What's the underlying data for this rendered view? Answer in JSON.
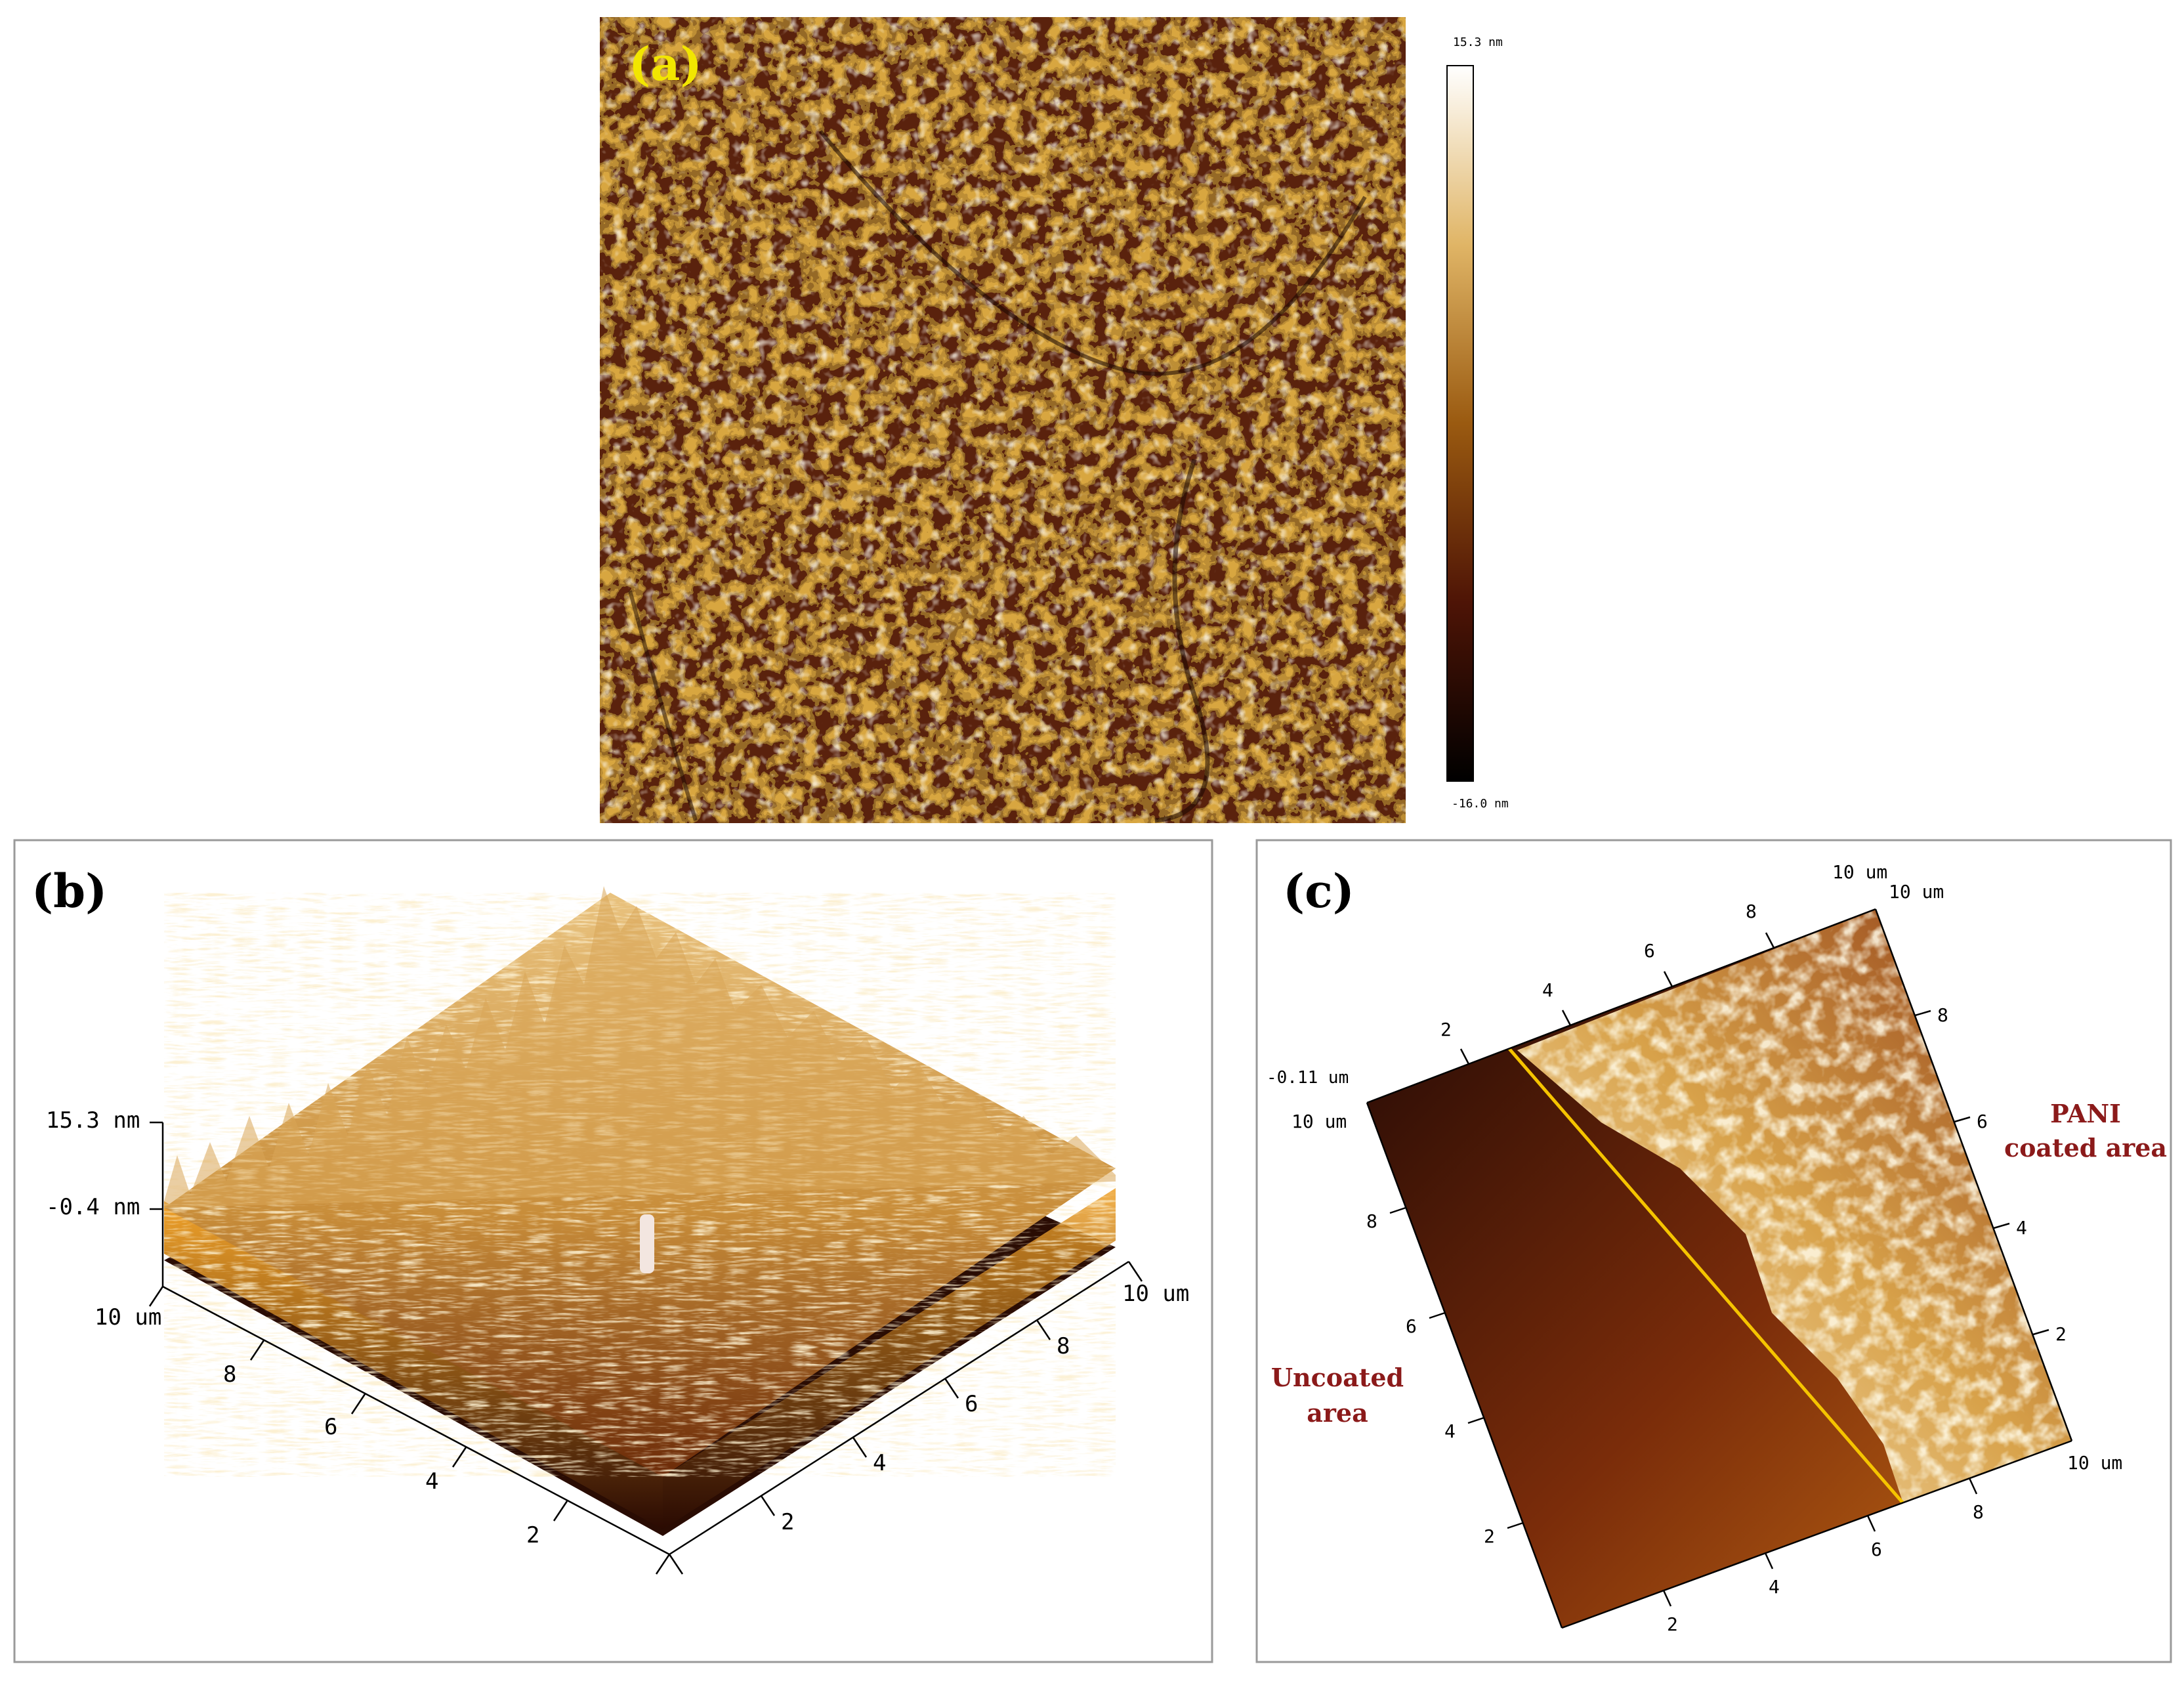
{
  "figure": {
    "panel_a": {
      "label": "(a)",
      "colorbar_max": "15.3 nm",
      "colorbar_min": "-16.0 nm"
    },
    "panel_b": {
      "label": "(b)",
      "z_top": "15.3 nm",
      "z_mid": "-0.4 nm",
      "axis_left_end": "10 um",
      "axis_left_ticks": [
        "8",
        "6",
        "4",
        "2"
      ],
      "axis_right_end": "10 um",
      "axis_right_ticks": [
        "8",
        "6",
        "4",
        "2"
      ]
    },
    "panel_c": {
      "label": "(c)",
      "z_value": "-0.11 um",
      "top_corner_a": "10 um",
      "top_corner_b": "10 um",
      "left_corner": "10 um",
      "right_corner": "10 um",
      "top_edge_ticks": [
        "2",
        "4",
        "6",
        "8"
      ],
      "right_edge_ticks": [
        "8",
        "6",
        "4",
        "2"
      ],
      "left_edge_ticks": [
        "8",
        "6",
        "4",
        "2"
      ],
      "bottom_edge_ticks": [
        "2",
        "4",
        "6",
        "8"
      ],
      "pani_label_1": "PANI",
      "pani_label_2": "coated area",
      "uncoated_label_1": "Uncoated",
      "uncoated_label_2": "area"
    },
    "colors": {
      "label_yellow": "#f2e600",
      "annotation_red": "#8b1a1a",
      "boundary_line": "#f5c400"
    }
  }
}
